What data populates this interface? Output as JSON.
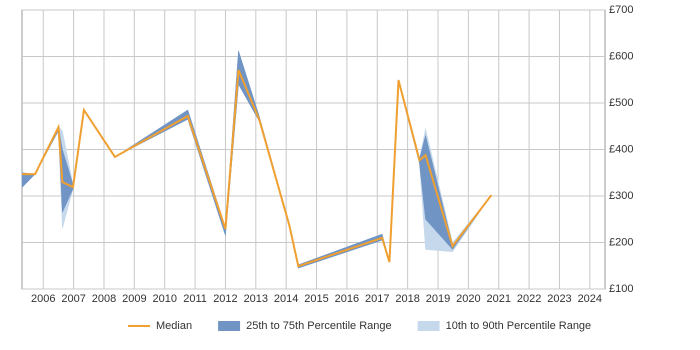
{
  "chart_data": {
    "type": "line",
    "x": [
      2005.3,
      2005.73,
      2006.5,
      2006.63,
      2006.98,
      2007.34,
      2008.36,
      2010.76,
      2012.0,
      2012.43,
      2013.12,
      2014.1,
      2014.4,
      2017.16,
      2017.4,
      2017.7,
      2018.39,
      2018.59,
      2019.48,
      2020.76
    ],
    "series": [
      {
        "name": "Median",
        "color": "#f0a030",
        "values": [
          347,
          347,
          448,
          330,
          319,
          485,
          384,
          472,
          229,
          571,
          463,
          238,
          149,
          210,
          158,
          549,
          377,
          388,
          192,
          302
        ]
      }
    ],
    "bands": [
      {
        "name": "10th to 90th Percentile Range",
        "color": "#c6d9ec",
        "lower": [
          318,
          347,
          440,
          230,
          315,
          485,
          384,
          465,
          215,
          540,
          460,
          235,
          145,
          205,
          158,
          545,
          370,
          185,
          180,
          302
        ],
        "upper": [
          350,
          347,
          450,
          440,
          325,
          485,
          384,
          485,
          232,
          612,
          470,
          240,
          152,
          218,
          160,
          550,
          380,
          445,
          200,
          302
        ]
      },
      {
        "name": "25th to 75th Percentile Range",
        "color": "#7094c4",
        "lower": [
          318,
          347,
          440,
          265,
          315,
          485,
          384,
          465,
          215,
          540,
          460,
          235,
          145,
          205,
          158,
          545,
          370,
          250,
          185,
          302
        ],
        "upper": [
          350,
          347,
          450,
          400,
          325,
          485,
          384,
          485,
          232,
          612,
          470,
          240,
          152,
          218,
          160,
          550,
          380,
          430,
          195,
          302
        ]
      }
    ],
    "xlim": [
      2005.3,
      2024.5
    ],
    "xticks": [
      2006,
      2007,
      2008,
      2009,
      2010,
      2011,
      2012,
      2013,
      2014,
      2015,
      2016,
      2017,
      2018,
      2019,
      2020,
      2021,
      2022,
      2023,
      2024
    ],
    "ylim": [
      100,
      700
    ],
    "yticks": [
      {
        "value": 100,
        "label": "£100"
      },
      {
        "value": 200,
        "label": "£200"
      },
      {
        "value": 300,
        "label": "£300"
      },
      {
        "value": 400,
        "label": "£400"
      },
      {
        "value": 500,
        "label": "£500"
      },
      {
        "value": 600,
        "label": "£600"
      },
      {
        "value": 700,
        "label": "£700"
      }
    ],
    "grid": true
  }
}
